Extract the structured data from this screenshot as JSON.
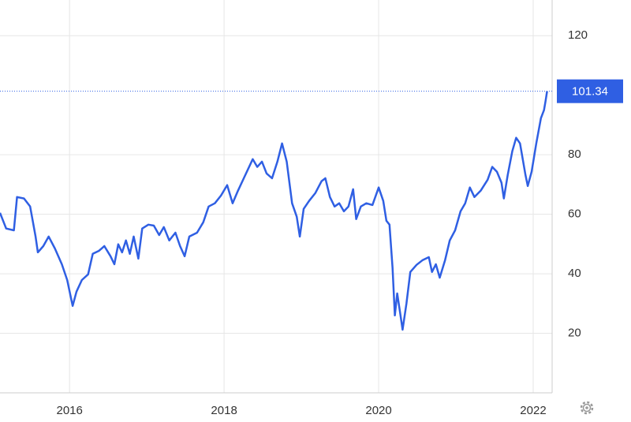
{
  "chart_data": {
    "type": "line",
    "x": [
      2015.1,
      2015.18,
      2015.28,
      2015.32,
      2015.41,
      2015.49,
      2015.56,
      2015.59,
      2015.66,
      2015.73,
      2015.81,
      2015.9,
      2015.97,
      2016.04,
      2016.09,
      2016.16,
      2016.24,
      2016.3,
      2016.38,
      2016.45,
      2016.53,
      2016.58,
      2016.63,
      2016.68,
      2016.73,
      2016.78,
      2016.83,
      2016.89,
      2016.94,
      2017.02,
      2017.09,
      2017.16,
      2017.22,
      2017.29,
      2017.37,
      2017.43,
      2017.49,
      2017.55,
      2017.65,
      2017.73,
      2017.8,
      2017.88,
      2017.96,
      2018.04,
      2018.11,
      2018.18,
      2018.26,
      2018.37,
      2018.43,
      2018.49,
      2018.55,
      2018.62,
      2018.69,
      2018.75,
      2018.81,
      2018.88,
      2018.94,
      2018.98,
      2019.03,
      2019.1,
      2019.18,
      2019.26,
      2019.31,
      2019.37,
      2019.43,
      2019.49,
      2019.55,
      2019.61,
      2019.67,
      2019.71,
      2019.77,
      2019.84,
      2019.92,
      2020.0,
      2020.06,
      2020.1,
      2020.14,
      2020.18,
      2020.21,
      2020.24,
      2020.28,
      2020.31,
      2020.36,
      2020.41,
      2020.49,
      2020.57,
      2020.65,
      2020.69,
      2020.74,
      2020.79,
      2020.86,
      2020.92,
      2020.99,
      2021.06,
      2021.12,
      2021.18,
      2021.24,
      2021.32,
      2021.41,
      2021.47,
      2021.53,
      2021.59,
      2021.62,
      2021.67,
      2021.73,
      2021.78,
      2021.83,
      2021.9,
      2021.93,
      2021.98,
      2022.04,
      2022.1,
      2022.14,
      2022.16,
      2022.18
    ],
    "series": [
      {
        "color": "#2f5fe3",
        "values": [
          60.5,
          55.2,
          54.6,
          65.8,
          65.3,
          62.6,
          52.5,
          47.2,
          49.3,
          52.5,
          48.5,
          43.2,
          37.9,
          29.2,
          34.0,
          37.9,
          39.8,
          46.7,
          47.7,
          49.3,
          45.9,
          43.2,
          49.9,
          47.2,
          51.2,
          46.7,
          52.5,
          45.1,
          55.2,
          56.5,
          56.2,
          53.0,
          55.7,
          51.2,
          53.8,
          49.3,
          45.9,
          52.5,
          53.8,
          57.3,
          62.6,
          63.7,
          66.3,
          69.8,
          63.7,
          67.9,
          72.4,
          78.5,
          75.9,
          77.7,
          73.7,
          72.1,
          77.7,
          83.8,
          77.7,
          63.7,
          59.2,
          52.5,
          61.8,
          64.5,
          67.1,
          71.1,
          72.1,
          65.8,
          62.6,
          63.7,
          61.0,
          62.6,
          68.4,
          58.4,
          62.6,
          63.7,
          63.1,
          69.0,
          64.5,
          57.8,
          56.5,
          41.9,
          26.0,
          33.4,
          26.5,
          21.2,
          30.0,
          40.6,
          43.0,
          44.6,
          45.6,
          40.6,
          43.2,
          38.7,
          44.6,
          51.2,
          54.6,
          61.0,
          63.7,
          69.0,
          65.8,
          67.9,
          71.6,
          75.9,
          74.3,
          70.6,
          65.3,
          73.2,
          81.2,
          85.7,
          83.8,
          73.2,
          69.5,
          74.3,
          83.8,
          92.3,
          95.0,
          98.1,
          101.34
        ]
      }
    ],
    "last_value": 101.34,
    "xlim": [
      2015.1,
      2022.245
    ],
    "xticks": [
      2016,
      2018,
      2020,
      2022
    ],
    "ylim": [
      0,
      132
    ],
    "yticks": [
      20,
      40,
      60,
      80,
      120
    ],
    "grid": true
  }
}
